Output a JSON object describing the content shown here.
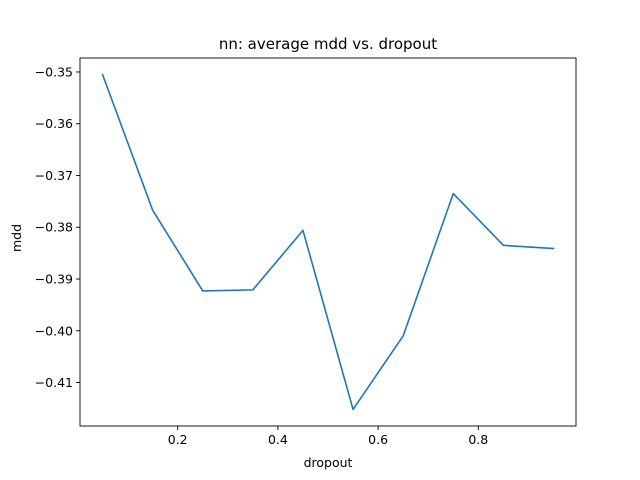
{
  "chart_data": {
    "type": "line",
    "title": "nn: average mdd vs. dropout",
    "xlabel": "dropout",
    "ylabel": "mdd",
    "x": [
      0.05,
      0.15,
      0.25,
      0.35,
      0.45,
      0.55,
      0.65,
      0.75,
      0.85,
      0.95
    ],
    "series": [
      {
        "values": [
          -0.3505,
          -0.3767,
          -0.3923,
          -0.3921,
          -0.3806,
          -0.4152,
          -0.401,
          -0.3735,
          -0.3835,
          -0.3841
        ],
        "color": "#1f77b4"
      }
    ],
    "xlim": [
      0.005,
      0.995
    ],
    "ylim": [
      -0.4184,
      -0.3473
    ],
    "xticks": [
      {
        "value": 0.2,
        "label": "0.2"
      },
      {
        "value": 0.4,
        "label": "0.4"
      },
      {
        "value": 0.6,
        "label": "0.6"
      },
      {
        "value": 0.8,
        "label": "0.8"
      }
    ],
    "yticks": [
      {
        "value": -0.35,
        "label": "−0.35"
      },
      {
        "value": -0.36,
        "label": "−0.36"
      },
      {
        "value": -0.37,
        "label": "−0.37"
      },
      {
        "value": -0.38,
        "label": "−0.38"
      },
      {
        "value": -0.39,
        "label": "−0.39"
      },
      {
        "value": -0.4,
        "label": "−0.40"
      },
      {
        "value": -0.41,
        "label": "−0.41"
      }
    ],
    "grid": false,
    "legend": "none"
  }
}
